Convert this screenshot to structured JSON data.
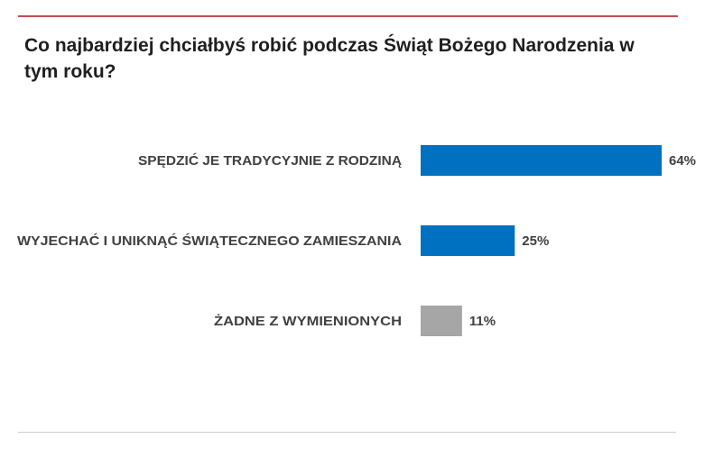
{
  "chart_data": {
    "type": "bar",
    "orientation": "horizontal",
    "title": "Co najbardziej chciałbyś robić podczas Świąt Bożego Narodzenia w tym roku?",
    "categories": [
      "SPĘDZIĆ JE TRADYCYJNIE Z RODZINĄ",
      "WYJECHAĆ I UNIKNĄĆ ŚWIĄTECZNEGO ZAMIESZANIA",
      "ŻADNE Z WYMIENIONYCH"
    ],
    "values": [
      64,
      25,
      11
    ],
    "value_labels": [
      "64%",
      "25%",
      "11%"
    ],
    "unit": "%",
    "bar_colors": [
      "#0070c0",
      "#0070c0",
      "#a6a6a6"
    ],
    "xlim": [
      0,
      64
    ],
    "grid": false,
    "legend": "none",
    "axis_lines": false
  },
  "colors": {
    "top_rule": "#c0504d",
    "bottom_rule": "#cccccc",
    "text": "#404040",
    "title_text": "#1f1f1f"
  }
}
